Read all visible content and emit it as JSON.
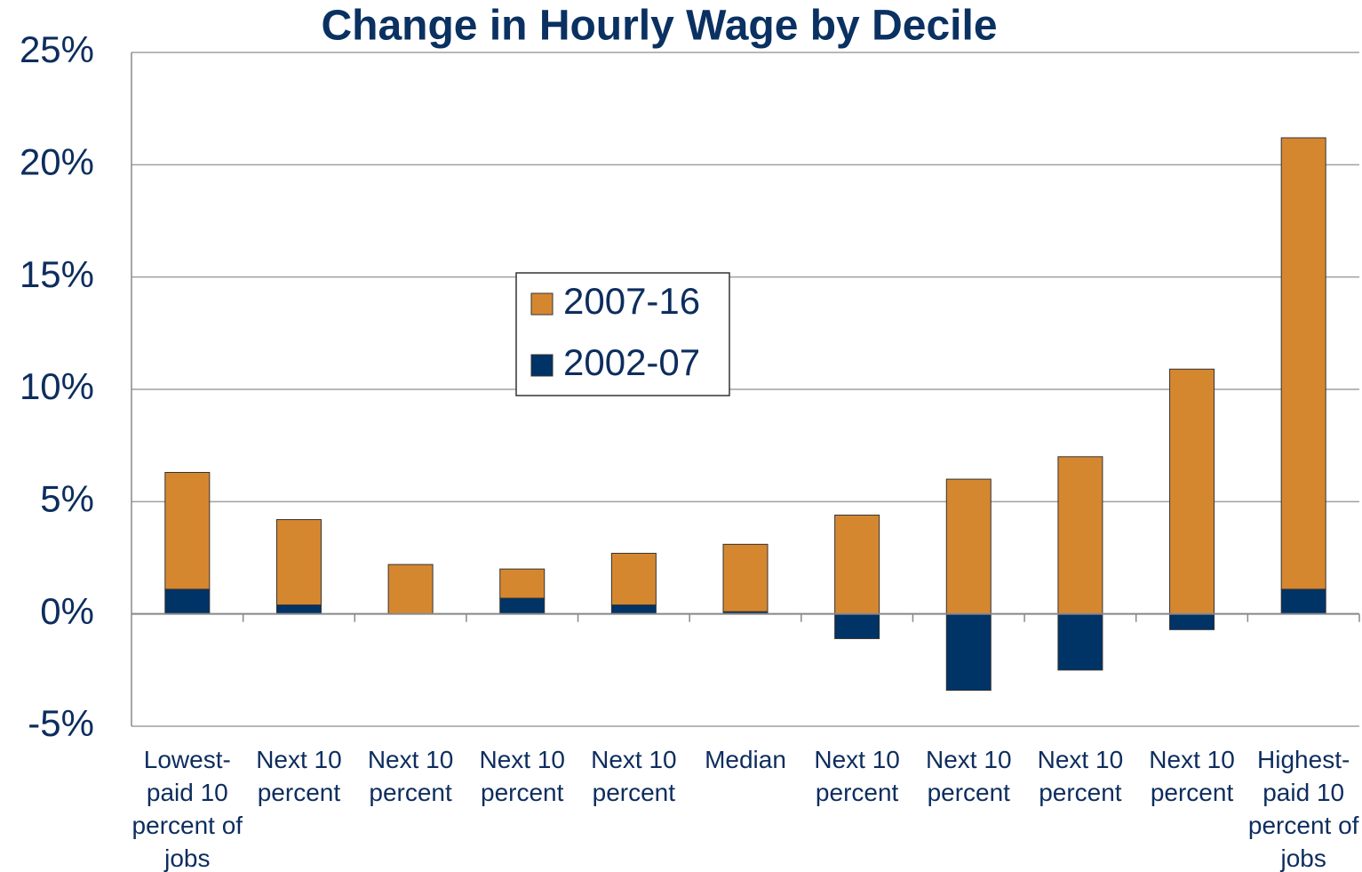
{
  "chart_data": {
    "type": "stacked_bar",
    "title": "Change in Hourly Wage by Decile",
    "categories": [
      "Lowest-paid 10 percent of jobs",
      "Next 10 percent",
      "Next 10 percent",
      "Next 10 percent",
      "Next 10 percent",
      "Median",
      "Next 10 percent",
      "Next 10 percent",
      "Next 10 percent",
      "Next 10 percent",
      "Highest-paid 10 percent of jobs"
    ],
    "series": [
      {
        "name": "2002-07",
        "color": "#003366",
        "values": [
          1.1,
          0.4,
          0.0,
          0.7,
          0.4,
          0.1,
          -1.1,
          -3.4,
          -2.5,
          -0.7,
          1.1
        ]
      },
      {
        "name": "2007-16",
        "color": "#d58730",
        "values": [
          5.2,
          3.8,
          2.2,
          1.3,
          2.3,
          3.0,
          4.4,
          6.0,
          7.0,
          10.9,
          20.1
        ]
      }
    ],
    "ylim": [
      -5,
      25
    ],
    "yticks": [
      {
        "value": -5,
        "label": "-5%"
      },
      {
        "value": 0,
        "label": "0%"
      },
      {
        "value": 5,
        "label": "5%"
      },
      {
        "value": 10,
        "label": "10%"
      },
      {
        "value": 15,
        "label": "15%"
      },
      {
        "value": 20,
        "label": "20%"
      },
      {
        "value": 25,
        "label": "25%"
      }
    ],
    "grid": true
  }
}
